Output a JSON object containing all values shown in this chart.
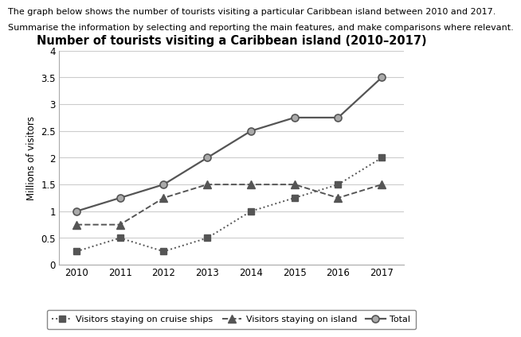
{
  "title": "Number of tourists visiting a Caribbean island (2010–2017)",
  "header_line1": "The graph below shows the number of tourists visiting a particular Caribbean island between 2010 and 2017.",
  "header_line2": "Summarise the information by selecting and reporting the main features, and make comparisons where relevant.",
  "ylabel": "Millions of visitors",
  "years": [
    2010,
    2011,
    2012,
    2013,
    2014,
    2015,
    2016,
    2017
  ],
  "cruise_ships": [
    0.25,
    0.5,
    0.25,
    0.5,
    1.0,
    1.25,
    1.5,
    2.0
  ],
  "island": [
    0.75,
    0.75,
    1.25,
    1.5,
    1.5,
    1.5,
    1.25,
    1.5
  ],
  "total": [
    1.0,
    1.25,
    1.5,
    2.0,
    2.5,
    2.75,
    2.75,
    3.5
  ],
  "ylim": [
    0,
    4
  ],
  "yticks": [
    0,
    0.5,
    1.0,
    1.5,
    2.0,
    2.5,
    3.0,
    3.5,
    4.0
  ],
  "color_line": "#555555",
  "color_total_marker": "#aaaaaa",
  "background_color": "#ffffff",
  "grid_color": "#cccccc",
  "header1_fontsize": 8.0,
  "header2_fontsize": 8.0,
  "title_fontsize": 10.5,
  "tick_fontsize": 8.5,
  "ylabel_fontsize": 8.5,
  "legend_fontsize": 8.0
}
